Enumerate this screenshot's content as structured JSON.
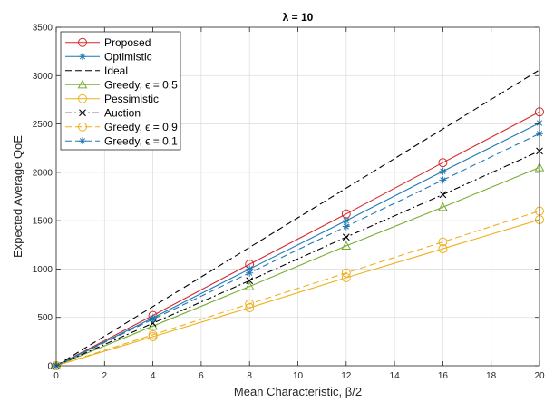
{
  "chart_data": {
    "type": "line",
    "title": "λ = 10",
    "xlabel": "Mean Characteristic, β/2",
    "ylabel": "Expected Average QoE",
    "xlim": [
      0,
      20
    ],
    "ylim": [
      0,
      3500
    ],
    "xticks": [
      0,
      2,
      4,
      6,
      8,
      10,
      12,
      14,
      16,
      18,
      20
    ],
    "yticks": [
      0,
      500,
      1000,
      1500,
      2000,
      2500,
      3000,
      3500
    ],
    "grid": true,
    "legend_position": "top-left",
    "series": [
      {
        "name": "Proposed",
        "color": "#d62728",
        "dash": "solid",
        "marker": "circle",
        "x": [
          0,
          4,
          8,
          12,
          16,
          20
        ],
        "values": [
          0,
          520,
          1050,
          1570,
          2100,
          2625
        ]
      },
      {
        "name": "Optimistic",
        "color": "#1f77b4",
        "dash": "solid",
        "marker": "star",
        "x": [
          0,
          4,
          8,
          12,
          16,
          20
        ],
        "values": [
          0,
          495,
          1000,
          1500,
          2010,
          2510
        ]
      },
      {
        "name": "Ideal",
        "color": "#000000",
        "dash": "dashed",
        "marker": "none",
        "x": [
          0,
          20
        ],
        "values": [
          0,
          3060
        ]
      },
      {
        "name": "Greedy, ϵ = 0.5",
        "color": "#77ac30",
        "dash": "solid",
        "marker": "triangle",
        "x": [
          0,
          4,
          8,
          12,
          16,
          20
        ],
        "values": [
          0,
          410,
          820,
          1240,
          1640,
          2050
        ]
      },
      {
        "name": "Pessimistic",
        "color": "#edb120",
        "dash": "solid",
        "marker": "circle",
        "x": [
          0,
          4,
          8,
          12,
          16,
          20
        ],
        "values": [
          0,
          300,
          600,
          910,
          1210,
          1510
        ]
      },
      {
        "name": "Auction",
        "color": "#000000",
        "dash": "dashdot",
        "marker": "x",
        "x": [
          0,
          4,
          8,
          12,
          16,
          20
        ],
        "values": [
          0,
          440,
          880,
          1330,
          1770,
          2220
        ]
      },
      {
        "name": "Greedy, ϵ = 0.9",
        "color": "#edb120",
        "dash": "dashed",
        "marker": "circle",
        "x": [
          0,
          4,
          8,
          12,
          16,
          20
        ],
        "values": [
          0,
          320,
          640,
          960,
          1280,
          1600
        ]
      },
      {
        "name": "Greedy, ϵ = 0.1",
        "color": "#1f77b4",
        "dash": "dashed",
        "marker": "star",
        "x": [
          0,
          4,
          8,
          12,
          16,
          20
        ],
        "values": [
          0,
          480,
          960,
          1440,
          1920,
          2400
        ]
      }
    ]
  }
}
